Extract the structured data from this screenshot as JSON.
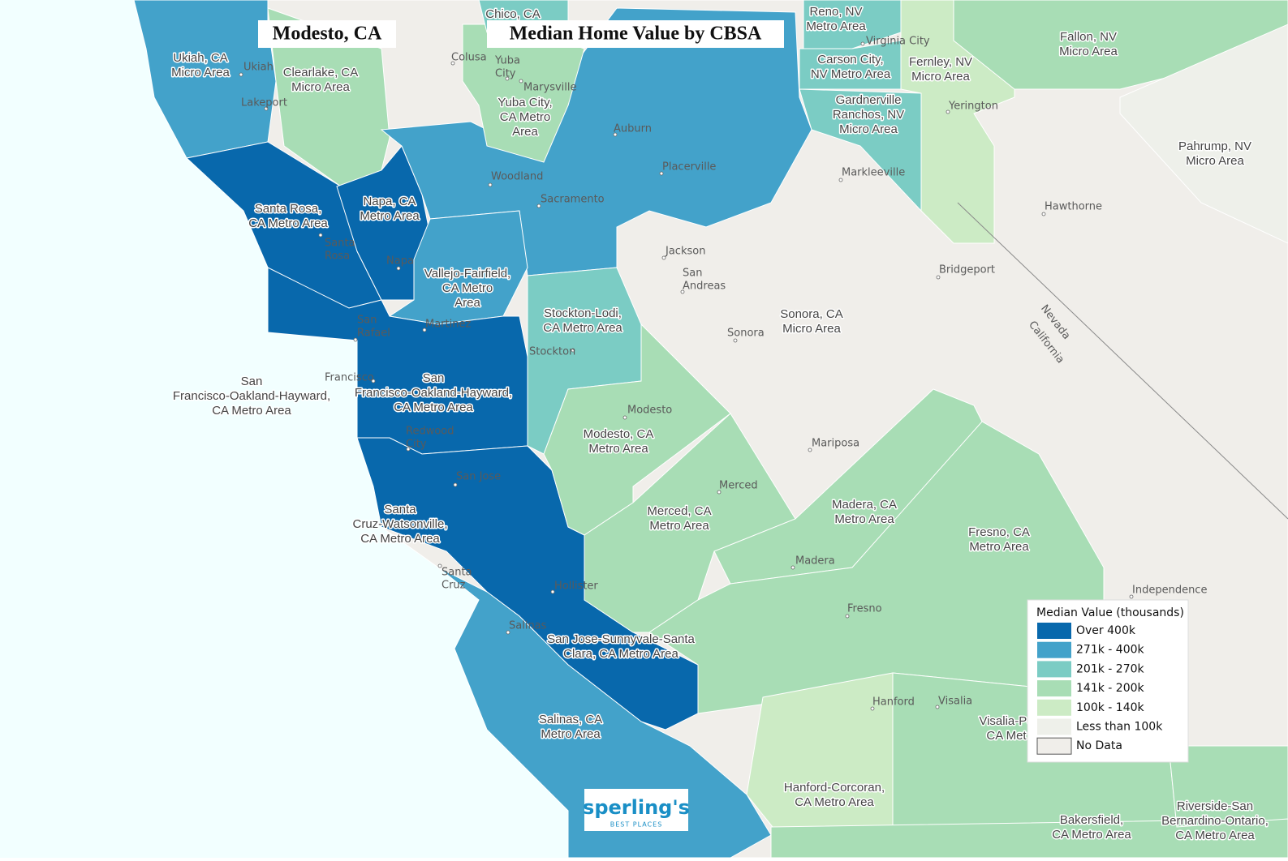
{
  "header": {
    "title": "Modesto, CA",
    "subtitle": "Median Home Value by CBSA"
  },
  "legend": {
    "title": "Median Value (thousands)",
    "items": [
      {
        "label": "Over 400k",
        "color": "#0868ac"
      },
      {
        "label": "271k - 400k",
        "color": "#43a2ca"
      },
      {
        "label": "201k - 270k",
        "color": "#7bccc4"
      },
      {
        "label": "141k - 200k",
        "color": "#a8ddb5"
      },
      {
        "label": "100k - 140k",
        "color": "#ccebc5"
      },
      {
        "label": "Less than 100k",
        "color": "#eef0ea"
      },
      {
        "label": "No Data",
        "color": "#f0eeea"
      }
    ]
  },
  "regions": [
    [
      "Ukiah, CA",
      "Micro Area"
    ],
    [
      "Clearlake, CA",
      "Micro Area"
    ],
    [
      "Santa Rosa,",
      "CA Metro Area"
    ],
    [
      "Napa, CA",
      "Metro Area"
    ],
    [
      "Vallejo-Fairfield,",
      "CA Metro",
      "Area"
    ],
    [
      "San",
      "Francisco-Oakland-Hayward,",
      "CA Metro Area"
    ],
    [
      "San",
      "Francisco-Oakland-Hayward,",
      "CA Metro Area"
    ],
    [
      "Stockton-Lodi,",
      "CA Metro Area"
    ],
    [
      "Modesto, CA",
      "Metro Area"
    ],
    [
      "Merced, CA",
      "Metro Area"
    ],
    [
      "Madera, CA",
      "Metro Area"
    ],
    [
      "Fresno, CA",
      "Metro Area"
    ],
    [
      "Sonora, CA",
      "Micro Area"
    ],
    [
      "Santa",
      "Cruz-Watsonville,",
      "CA Metro Area"
    ],
    [
      "San Jose-Sunnyvale-Santa",
      "Clara, CA Metro Area"
    ],
    [
      "Salinas, CA",
      "Metro Area"
    ],
    [
      "Hanford-Corcoran,",
      "CA Metro Area"
    ],
    [
      "Bakersfield,",
      "CA Metro Area"
    ],
    [
      "Riverside-San",
      "Bernardino-Ontario,",
      "CA Metro Area"
    ],
    [
      "Reno, NV",
      "Metro Area"
    ],
    [
      "Carson City,",
      "NV Metro Area"
    ],
    [
      "Fernley, NV",
      "Micro Area"
    ],
    [
      "Fallon, NV",
      "Micro Area"
    ],
    [
      "Gardnerville",
      "Ranchos, NV",
      "Micro Area"
    ],
    [
      "Pahrump, NV",
      "Micro Area"
    ],
    [
      "Yuba City,",
      "CA Metro",
      "Area"
    ],
    [
      "Chico, CA"
    ],
    [
      "Visalia-Po",
      "CA Met"
    ]
  ],
  "cities": [
    [
      "Ukiah"
    ],
    [
      "Lakeport"
    ],
    [
      "Colusa"
    ],
    [
      "Yuba",
      "City"
    ],
    [
      "Marysville"
    ],
    [
      "Auburn"
    ],
    [
      "Placerville"
    ],
    [
      "Woodland"
    ],
    [
      "Sacramento"
    ],
    [
      "Santa",
      "Rosa"
    ],
    [
      "Napa"
    ],
    [
      "Martinez"
    ],
    [
      "San",
      "Rafael"
    ],
    [
      "Francisco"
    ],
    [
      "Redwood",
      "City"
    ],
    [
      "San Jose"
    ],
    [
      "Stockton"
    ],
    [
      "Modesto"
    ],
    [
      "Jackson"
    ],
    [
      "San",
      "Andreas"
    ],
    [
      "Sonora"
    ],
    [
      "Mariposa"
    ],
    [
      "Merced"
    ],
    [
      "Madera"
    ],
    [
      "Fresno"
    ],
    [
      "Hanford"
    ],
    [
      "Visalia"
    ],
    [
      "Salinas"
    ],
    [
      "Santa",
      "Cruz"
    ],
    [
      "Hollister"
    ],
    [
      "Virginia City"
    ],
    [
      "Yerington"
    ],
    [
      "Markleeville"
    ],
    [
      "Hawthorne"
    ],
    [
      "Bridgeport"
    ],
    [
      "Independence"
    ]
  ],
  "state_labels": [
    "Nevada",
    "California"
  ],
  "logo": {
    "name": "sperling's",
    "tagline": "BEST PLACES"
  }
}
